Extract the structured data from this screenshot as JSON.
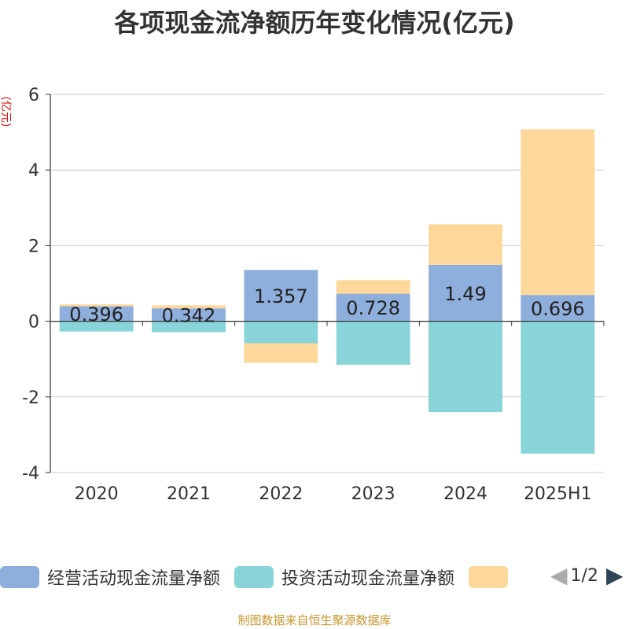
{
  "title": "各项现金流净额历年变化情况(亿元)",
  "unit": "(亿元)",
  "legend": {
    "items": [
      {
        "label": "经营活动现金流量净额",
        "color": "#8eaedb"
      },
      {
        "label": "投资活动现金流量净额",
        "color": "#88d4d8"
      },
      {
        "label": "",
        "color": "#fed89a"
      }
    ],
    "page": "1/2",
    "prev_icon": "chevron-left-icon",
    "next_icon": "chevron-right-icon"
  },
  "footer": {
    "source": "制图数据来自恒生聚源数据库"
  },
  "chart_data": {
    "type": "bar",
    "stacked": true,
    "categories": [
      "2020",
      "2021",
      "2022",
      "2023",
      "2024",
      "2025H1"
    ],
    "ylim": [
      -4,
      6
    ],
    "yticks": [
      6,
      4,
      2,
      0,
      -2,
      -4
    ],
    "ylabel": "(亿元)",
    "grid": true,
    "legend_position": "bottom",
    "series": [
      {
        "name": "经营活动现金流量净额",
        "color": "#8eaedb",
        "values": [
          0.396,
          0.342,
          1.357,
          0.728,
          1.49,
          0.696
        ],
        "labels": [
          "0.396",
          "0.342",
          "1.357",
          "0.728",
          "1.49",
          "0.696"
        ]
      },
      {
        "name": "投资活动现金流量净额",
        "color": "#88d4d8",
        "values": [
          -0.27,
          -0.29,
          -0.58,
          -1.15,
          -2.4,
          -3.5
        ]
      },
      {
        "name": "",
        "color": "#fed89a",
        "values": [
          0.05,
          0.08,
          -0.52,
          0.36,
          1.07,
          4.38
        ]
      }
    ]
  }
}
